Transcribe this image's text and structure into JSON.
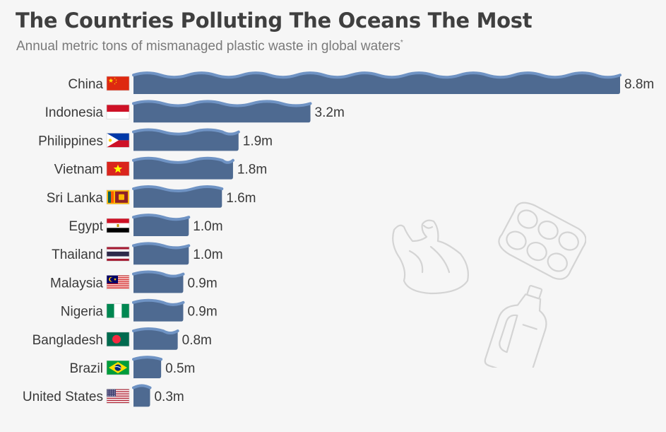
{
  "title": "The Countries Polluting The Oceans The Most",
  "subtitle": "Annual metric tons of mismanaged plastic waste in global waters",
  "subtitle_marker": "*",
  "colors": {
    "bar": "#4e6a91",
    "wave": "#6f93c4",
    "label": "#3a3a3a",
    "background": "#f6f6f6"
  },
  "chart_data": {
    "type": "bar",
    "orientation": "horizontal",
    "title": "The Countries Polluting The Oceans The Most",
    "subtitle": "Annual metric tons of mismanaged plastic waste in global waters*",
    "categories": [
      "China",
      "Indonesia",
      "Philippines",
      "Vietnam",
      "Sri Lanka",
      "Egypt",
      "Thailand",
      "Malaysia",
      "Nigeria",
      "Bangladesh",
      "Brazil",
      "United States"
    ],
    "values": [
      8.8,
      3.2,
      1.9,
      1.8,
      1.6,
      1.0,
      1.0,
      0.9,
      0.9,
      0.8,
      0.5,
      0.3
    ],
    "value_labels": [
      "8.8m",
      "3.2m",
      "1.9m",
      "1.8m",
      "1.6m",
      "1.0m",
      "1.0m",
      "0.9m",
      "0.9m",
      "0.8m",
      "0.5m",
      "0.3m"
    ],
    "flags": [
      "flag-china-icon",
      "flag-indonesia-icon",
      "flag-philippines-icon",
      "flag-vietnam-icon",
      "flag-sri-lanka-icon",
      "flag-egypt-icon",
      "flag-thailand-icon",
      "flag-malaysia-icon",
      "flag-nigeria-icon",
      "flag-bangladesh-icon",
      "flag-brazil-icon",
      "flag-united-states-icon"
    ],
    "unit": "metric tons",
    "xlim": [
      0,
      8.8
    ],
    "grid": false,
    "legend": "none"
  },
  "decorations": [
    "plastic-bag-icon",
    "six-pack-rings-icon",
    "plastic-bottle-icon"
  ]
}
